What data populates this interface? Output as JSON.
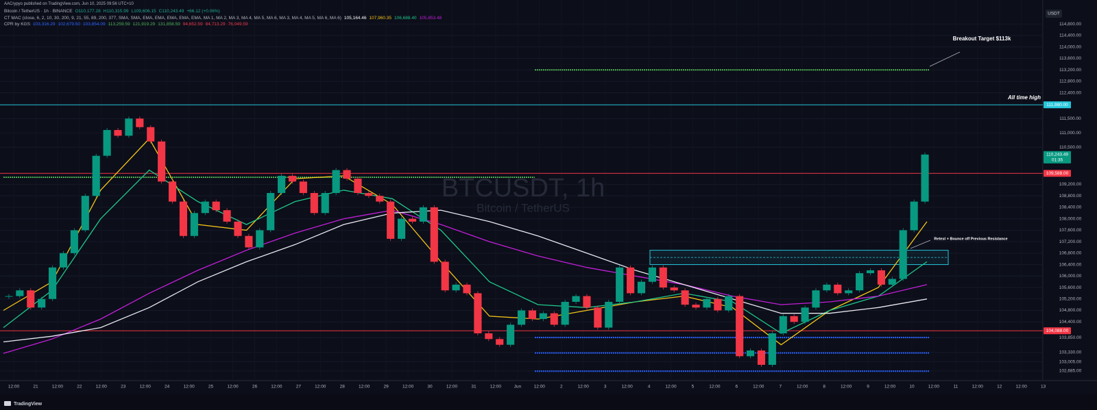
{
  "header": {
    "publisher": "AACrypyo published on TradingView.com, Jun 10, 2025 09:56 UTC+10",
    "rows": [
      [
        {
          "text": "Bitcoin / TetherUS · 1h · BINANCE",
          "color": "#b2b5be"
        },
        {
          "text": "O110,177.28",
          "color": "#22ab94"
        },
        {
          "text": "H110,315.99",
          "color": "#22ab94"
        },
        {
          "text": "L109,606.15",
          "color": "#22ab94"
        },
        {
          "text": "C110,243.49",
          "color": "#22ab94"
        },
        {
          "text": "+66.12 (+0.06%)",
          "color": "#22ab94"
        }
      ],
      [
        {
          "text": "CT MAC (close, 6, 2, 10, 30, 200, 9, 21, 55, 89, 200, 377, SMA, SMA, EMA, EMA, EMA, EMA, EMA, MA 1, MA 2, MA 3, MA 4, MA 5, MA 6, MA 3, MA 4, MA 5, MA 6, MA 6)",
          "color": "#b2b5be"
        },
        {
          "text": "105,164.46",
          "color": "#ffffff"
        },
        {
          "text": "107,960.35",
          "color": "#f5c518"
        },
        {
          "text": "106,688.40",
          "color": "#1fc98a"
        },
        {
          "text": "105,853.48",
          "color": "#c21fd8"
        }
      ],
      [
        {
          "text": "CPR by KGS",
          "color": "#b2b5be"
        },
        {
          "text": "103,316.29",
          "color": "#2962ff"
        },
        {
          "text": "102,679.50",
          "color": "#2962ff"
        },
        {
          "text": "103,854.09",
          "color": "#2962ff"
        },
        {
          "text": "113,259.59",
          "color": "#4caf50"
        },
        {
          "text": "121,919.29",
          "color": "#4caf50"
        },
        {
          "text": "131,858.59",
          "color": "#4caf50"
        },
        {
          "text": "94,652.59",
          "color": "#f23645"
        },
        {
          "text": "84,713.29",
          "color": "#f23645"
        },
        {
          "text": "76,049.59",
          "color": "#f23645"
        }
      ]
    ],
    "currency": "USDT",
    "footer": "TradingView"
  },
  "chart_data": {
    "type": "candlestick",
    "title": "BTCUSDT, 1h",
    "subtitle": "Bitcoin / TetherUS",
    "ylim": [
      102350,
      115640
    ],
    "yticks": [
      {
        "value": 114800,
        "label": "114,800.00"
      },
      {
        "value": 114400,
        "label": "114,400.00"
      },
      {
        "value": 114000,
        "label": "114,000.00"
      },
      {
        "value": 113600,
        "label": "113,600.00"
      },
      {
        "value": 113200,
        "label": "113,200.00"
      },
      {
        "value": 112800,
        "label": "112,800.00"
      },
      {
        "value": 112400,
        "label": "112,400.00"
      },
      {
        "value": 111500,
        "label": "111,500.00"
      },
      {
        "value": 111000,
        "label": "111,000.00"
      },
      {
        "value": 110500,
        "label": "110,500.00"
      },
      {
        "value": 109200,
        "label": "109,200.00"
      },
      {
        "value": 108800,
        "label": "108,800.00"
      },
      {
        "value": 108400,
        "label": "108,400.00"
      },
      {
        "value": 108000,
        "label": "108,000.00"
      },
      {
        "value": 107600,
        "label": "107,600.00"
      },
      {
        "value": 107200,
        "label": "107,200.00"
      },
      {
        "value": 106800,
        "label": "106,800.00"
      },
      {
        "value": 106400,
        "label": "106,400.00"
      },
      {
        "value": 106000,
        "label": "106,000.00"
      },
      {
        "value": 105600,
        "label": "105,600.00"
      },
      {
        "value": 105200,
        "label": "105,200.00"
      },
      {
        "value": 104800,
        "label": "104,800.00"
      },
      {
        "value": 104400,
        "label": "104,400.00"
      },
      {
        "value": 103850,
        "label": "103,850.00"
      },
      {
        "value": 103330,
        "label": "103,330.00"
      },
      {
        "value": 103005,
        "label": "103,005.00"
      },
      {
        "value": 102685,
        "label": "102,685.00"
      }
    ],
    "x_labels": [
      "12:00",
      "21",
      "12:00",
      "22",
      "12:00",
      "23",
      "12:00",
      "24",
      "12:00",
      "25",
      "12:00",
      "26",
      "12:00",
      "27",
      "12:00",
      "28",
      "12:00",
      "29",
      "12:00",
      "30",
      "12:00",
      "31",
      "12:00",
      "Jun",
      "12:00",
      "2",
      "12:00",
      "3",
      "12:00",
      "4",
      "12:00",
      "5",
      "12:00",
      "6",
      "12:00",
      "7",
      "12:00",
      "8",
      "12:00",
      "9",
      "12:00",
      "10",
      "12:00",
      "11",
      "12:00",
      "12",
      "12:00",
      "13"
    ],
    "up_color": "#089981",
    "down_color": "#f23645",
    "values": [
      105300,
      105500,
      104900,
      105200,
      106300,
      106800,
      107600,
      108800,
      110200,
      111100,
      110900,
      111500,
      111200,
      110700,
      109300,
      108600,
      107400,
      108200,
      108600,
      108300,
      107900,
      107400,
      107000,
      107600,
      108900,
      109500,
      109300,
      108900,
      108200,
      108900,
      109700,
      109400,
      108900,
      108800,
      108600,
      107300,
      108000,
      107900,
      108400,
      106500,
      105500,
      105700,
      105400,
      104000,
      103800,
      103600,
      104300,
      104800,
      104500,
      104700,
      104300,
      105100,
      105300,
      104900,
      104200,
      105100,
      106300,
      105400,
      105800,
      106300,
      105600,
      105500,
      105000,
      104900,
      105200,
      104800,
      105300,
      103200,
      103400,
      102900,
      104000,
      104600,
      104400,
      104900,
      105500,
      105700,
      105400,
      105500,
      106100,
      106200,
      105700,
      105900,
      107600,
      108600,
      110243.49
    ],
    "lines": [
      {
        "color": "#f5c518",
        "values": [
          104800,
          105800,
          109000,
          110800,
          107800,
          107600,
          109400,
          109500,
          108500,
          106500,
          104600,
          104500,
          104800,
          105100,
          105300,
          104900,
          103600,
          104800,
          105600,
          107900
        ]
      },
      {
        "color": "#1fc98a",
        "values": [
          104200,
          105500,
          108000,
          109700,
          108600,
          107800,
          108600,
          109000,
          108700,
          107600,
          105800,
          105000,
          104900,
          105100,
          105400,
          105100,
          104000,
          104800,
          105300,
          106500
        ]
      },
      {
        "color": "#c21fd8",
        "values": [
          103300,
          103800,
          104500,
          105400,
          106200,
          106900,
          107500,
          108000,
          108300,
          107800,
          107200,
          106700,
          106300,
          106000,
          105700,
          105300,
          105000,
          105100,
          105300,
          105700
        ]
      },
      {
        "color": "#e8e8f0",
        "values": [
          103700,
          103900,
          104200,
          104900,
          105800,
          106500,
          107100,
          107800,
          108200,
          108300,
          107900,
          107400,
          106800,
          106200,
          105700,
          105200,
          104700,
          104700,
          104900,
          105200
        ]
      }
    ],
    "levels": [
      {
        "value": 111980,
        "color": "#26c6da",
        "style": "solid"
      },
      {
        "value": 109588,
        "color": "#f23645",
        "style": "solid"
      },
      {
        "value": 104088,
        "color": "#f23645",
        "style": "solid"
      },
      {
        "value": 113200,
        "color": "#4caf50",
        "style": "dotted"
      },
      {
        "value": 109450,
        "color": "#4caf50",
        "style": "dotted"
      },
      {
        "value": 103854.09,
        "color": "#2962ff",
        "style": "dotted"
      },
      {
        "value": 103316.29,
        "color": "#2962ff",
        "style": "dotted"
      },
      {
        "value": 102679.5,
        "color": "#2962ff",
        "style": "dotted"
      }
    ],
    "zone": {
      "top": 106900,
      "bottom": 106400,
      "color": "#26c6da"
    },
    "price_labels": [
      {
        "value": 111980,
        "label": "111,980.00",
        "color": "#26c6da"
      },
      {
        "value": 110243.49,
        "label": "110,243.49",
        "sublabel": "01:35",
        "color": "#089981"
      },
      {
        "value": 109588,
        "label": "109,588.00",
        "color": "#f23645"
      },
      {
        "value": 104088,
        "label": "104,088.00",
        "color": "#f23645"
      }
    ],
    "annotations": [
      "Breakout Target $113k",
      "All time high",
      "Retest + Bounce off Previous Resistance"
    ]
  }
}
